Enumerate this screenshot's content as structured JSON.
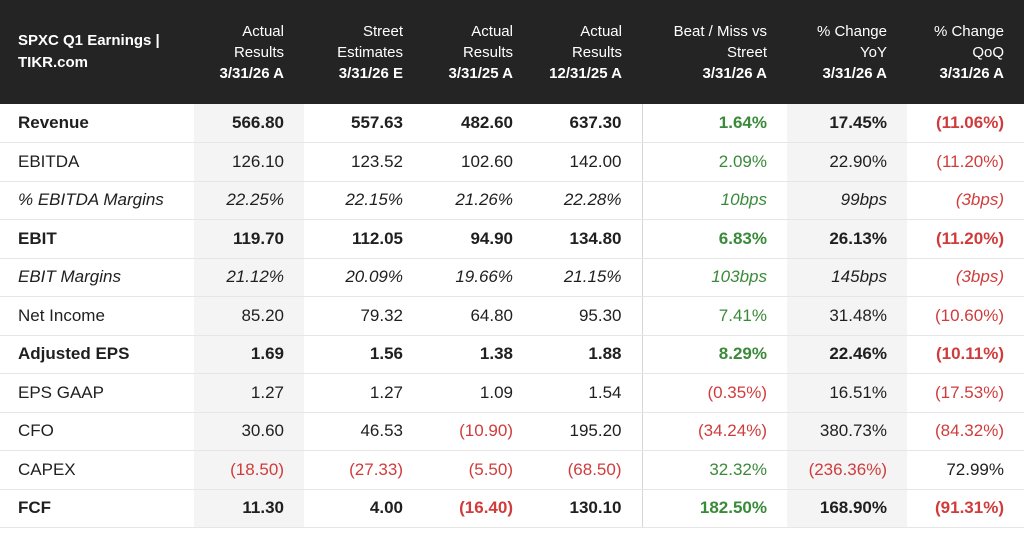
{
  "table": {
    "title_line1": "SPXC Q1 Earnings |",
    "title_line2": "TIKR.com",
    "columns": [
      {
        "l1": "Actual",
        "l2": "Results",
        "l3": "3/31/26 A"
      },
      {
        "l1": "Street",
        "l2": "Estimates",
        "l3": "3/31/26 E"
      },
      {
        "l1": "Actual",
        "l2": "Results",
        "l3": "3/31/25 A"
      },
      {
        "l1": "Actual",
        "l2": "Results",
        "l3": "12/31/25 A"
      },
      {
        "l1": "Beat / Miss vs",
        "l2": "Street",
        "l3": "3/31/26 A"
      },
      {
        "l1": "% Change",
        "l2": "YoY",
        "l3": "3/31/26 A"
      },
      {
        "l1": "% Change",
        "l2": "QoQ",
        "l3": "3/31/26 A"
      }
    ],
    "rows": [
      {
        "label": "Revenue",
        "cells": [
          "566.80",
          "557.63",
          "482.60",
          "637.30",
          "1.64%",
          "17.45%",
          "(11.06%)"
        ]
      },
      {
        "label": "EBITDA",
        "cells": [
          "126.10",
          "123.52",
          "102.60",
          "142.00",
          "2.09%",
          "22.90%",
          "(11.20%)"
        ]
      },
      {
        "label": "% EBITDA Margins",
        "cells": [
          "22.25%",
          "22.15%",
          "21.26%",
          "22.28%",
          "10bps",
          "99bps",
          "(3bps)"
        ]
      },
      {
        "label": "EBIT",
        "cells": [
          "119.70",
          "112.05",
          "94.90",
          "134.80",
          "6.83%",
          "26.13%",
          "(11.20%)"
        ]
      },
      {
        "label": "EBIT Margins",
        "cells": [
          "21.12%",
          "20.09%",
          "19.66%",
          "21.15%",
          "103bps",
          "145bps",
          "(3bps)"
        ]
      },
      {
        "label": "Net Income",
        "cells": [
          "85.20",
          "79.32",
          "64.80",
          "95.30",
          "7.41%",
          "31.48%",
          "(10.60%)"
        ]
      },
      {
        "label": "Adjusted EPS",
        "cells": [
          "1.69",
          "1.56",
          "1.38",
          "1.88",
          "8.29%",
          "22.46%",
          "(10.11%)"
        ]
      },
      {
        "label": "EPS GAAP",
        "cells": [
          "1.27",
          "1.27",
          "1.09",
          "1.54",
          "(0.35%)",
          "16.51%",
          "(17.53%)"
        ]
      },
      {
        "label": "CFO",
        "cells": [
          "30.60",
          "46.53",
          "(10.90)",
          "195.20",
          "(34.24%)",
          "380.73%",
          "(84.32%)"
        ]
      },
      {
        "label": "CAPEX",
        "cells": [
          "(18.50)",
          "(27.33)",
          "(5.50)",
          "(68.50)",
          "32.32%",
          "(236.36%)",
          "72.99%"
        ]
      },
      {
        "label": "FCF",
        "cells": [
          "11.30",
          "4.00",
          "(16.40)",
          "130.10",
          "182.50%",
          "168.90%",
          "(91.31%)"
        ]
      }
    ]
  },
  "colors": {
    "positive": "#3a8a3a",
    "negative": "#d03c3c",
    "header_bg": "#242424"
  }
}
